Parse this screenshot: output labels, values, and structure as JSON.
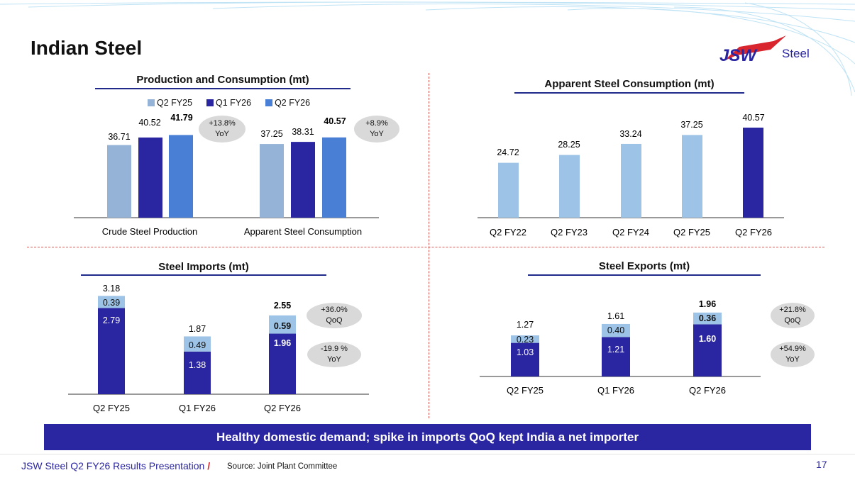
{
  "page": {
    "title": "Indian Steel",
    "logo_text": "Steel",
    "logo_mark": "JSW",
    "banner": "Healthy domestic demand; spike in imports QoQ kept India a net importer",
    "footer_title": "JSW Steel Q2 FY26 Results Presentation",
    "footer_slash": "/",
    "footer_source": "Source: Joint Plant Committee",
    "page_number": "17"
  },
  "colors": {
    "light": "#95b3d7",
    "dark": "#2a25a1",
    "mid": "#4a7fd6",
    "pale": "#9dc3e6",
    "rule": "#1f2a8a",
    "pill": "#d9d9d9"
  },
  "chart_data": [
    {
      "id": "production",
      "type": "bar",
      "title": "Production and Consumption (mt)",
      "categories": [
        "Crude Steel Production",
        "Apparent Steel Consumption"
      ],
      "series": [
        {
          "name": "Q2 FY25",
          "values": [
            36.71,
            37.25
          ]
        },
        {
          "name": "Q1 FY26",
          "values": [
            40.52,
            38.31
          ]
        },
        {
          "name": "Q2 FY26",
          "values": [
            41.79,
            40.57
          ]
        }
      ],
      "labels": [
        [
          "36.71",
          "40.52",
          "41.79"
        ],
        [
          "37.25",
          "38.31",
          "40.57"
        ]
      ],
      "annotations": [
        {
          "line1": "+13.8%",
          "line2": "YoY"
        },
        {
          "line1": "+8.9%",
          "line2": "YoY"
        }
      ],
      "ylim": [
        0,
        45
      ]
    },
    {
      "id": "asc",
      "type": "bar",
      "title": "Apparent Steel Consumption (mt)",
      "categories": [
        "Q2 FY22",
        "Q2 FY23",
        "Q2 FY24",
        "Q2 FY25",
        "Q2 FY26"
      ],
      "values": [
        24.72,
        28.25,
        33.24,
        37.25,
        40.57
      ],
      "labels": [
        "24.72",
        "28.25",
        "33.24",
        "37.25",
        "40.57"
      ],
      "ylim": [
        0,
        45
      ]
    },
    {
      "id": "imports",
      "type": "stacked-bar",
      "title": "Steel Imports (mt)",
      "categories": [
        "Q2 FY25",
        "Q1 FY26",
        "Q2 FY26"
      ],
      "series": [
        {
          "name": "bottom",
          "values": [
            2.79,
            1.38,
            1.96
          ]
        },
        {
          "name": "top",
          "values": [
            0.39,
            0.49,
            0.59
          ]
        }
      ],
      "totals": [
        3.18,
        1.87,
        2.55
      ],
      "bottom_labels": [
        "2.79",
        "1.38",
        "1.96"
      ],
      "top_labels": [
        "0.39",
        "0.49",
        "0.59"
      ],
      "total_labels": [
        "3.18",
        "1.87",
        "2.55"
      ],
      "annotations": [
        {
          "line1": "+36.0%",
          "line2": "QoQ"
        },
        {
          "line1": "-19.9 %",
          "line2": "YoY"
        }
      ],
      "ylim": [
        0,
        3.6
      ]
    },
    {
      "id": "exports",
      "type": "stacked-bar",
      "title": "Steel Exports (mt)",
      "categories": [
        "Q2 FY25",
        "Q1 FY26",
        "Q2 FY26"
      ],
      "series": [
        {
          "name": "bottom",
          "values": [
            1.03,
            1.21,
            1.6
          ]
        },
        {
          "name": "top",
          "values": [
            0.23,
            0.4,
            0.36
          ]
        }
      ],
      "totals": [
        1.27,
        1.61,
        1.96
      ],
      "bottom_labels": [
        "1.03",
        "1.21",
        "1.60"
      ],
      "top_labels": [
        "0.23",
        "0.40",
        "0.36"
      ],
      "total_labels": [
        "1.27",
        "1.61",
        "1.96"
      ],
      "annotations": [
        {
          "line1": "+21.8%",
          "line2": "QoQ"
        },
        {
          "line1": "+54.9%",
          "line2": "YoY"
        }
      ],
      "ylim": [
        0,
        2.2
      ]
    }
  ]
}
